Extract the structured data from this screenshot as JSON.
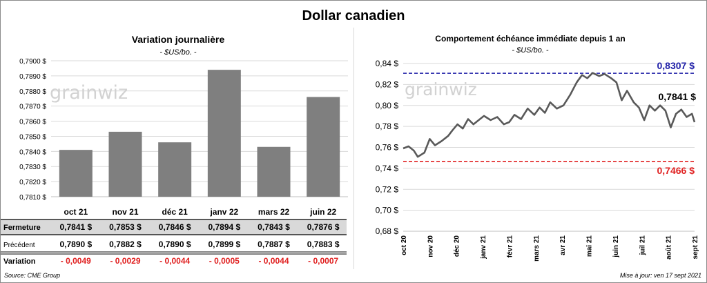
{
  "main_title": "Dollar canadien",
  "source": "Source: CME Group",
  "updated": "Mise à jour: ven 17 sept 2021",
  "chart_data": [
    {
      "type": "bar",
      "title": "Variation  journalière",
      "subtitle": "- $US/bo. -",
      "categories": [
        "oct 21",
        "nov 21",
        "déc 21",
        "janv 22",
        "mars 22",
        "juin 22"
      ],
      "values": [
        0.7841,
        0.7853,
        0.7846,
        0.7894,
        0.7843,
        0.7876
      ],
      "ylim": [
        0.781,
        0.79
      ],
      "yticks": [
        "0,7810 $",
        "0,7820 $",
        "0,7830 $",
        "0,7840 $",
        "0,7850 $",
        "0,7860 $",
        "0,7870 $",
        "0,7880 $",
        "0,7890 $",
        "0,7900 $"
      ],
      "bar_color": "#7f7f7f",
      "watermark": "grainwiz",
      "table": {
        "rows": [
          {
            "label": "Fermeture",
            "cells": [
              "0,7841  $",
              "0,7853  $",
              "0,7846  $",
              "0,7894  $",
              "0,7843  $",
              "0,7876  $"
            ]
          },
          {
            "label": "Précédent",
            "cells": [
              "0,7890  $",
              "0,7882  $",
              "0,7890  $",
              "0,7899  $",
              "0,7887  $",
              "0,7883  $"
            ]
          },
          {
            "label": "Variation",
            "cells": [
              "- 0,0049",
              "- 0,0029",
              "- 0,0044",
              "- 0,0005",
              "- 0,0044",
              "- 0,0007"
            ]
          }
        ]
      }
    },
    {
      "type": "line",
      "title": "Comportement échéance immédiate depuis 1 an",
      "subtitle": "- $US/bo. -",
      "ylim": [
        0.68,
        0.84
      ],
      "yticks": [
        "0,68 $",
        "0,70 $",
        "0,72 $",
        "0,74 $",
        "0,76 $",
        "0,78 $",
        "0,80 $",
        "0,82 $",
        "0,84 $"
      ],
      "xticks": [
        "oct 20",
        "nov 20",
        "déc 20",
        "janv 21",
        "févr 21",
        "mars 21",
        "avr 21",
        "mai 21",
        "juin 21",
        "juil 21",
        "août 21",
        "sept 21"
      ],
      "line_color": "#595959",
      "watermark": "grainwiz",
      "high": {
        "value": 0.8307,
        "label": "0,8307 $",
        "color": "#1f1fa8"
      },
      "low": {
        "value": 0.7466,
        "label": "0,7466  $",
        "color": "#e02020"
      },
      "last": {
        "value": 0.7841,
        "label": "0,7841 $"
      },
      "series": [
        {
          "x": 0,
          "y": 0.759
        },
        {
          "x": 0.2,
          "y": 0.761
        },
        {
          "x": 0.4,
          "y": 0.757
        },
        {
          "x": 0.55,
          "y": 0.751
        },
        {
          "x": 0.8,
          "y": 0.755
        },
        {
          "x": 1.0,
          "y": 0.768
        },
        {
          "x": 1.2,
          "y": 0.762
        },
        {
          "x": 1.45,
          "y": 0.766
        },
        {
          "x": 1.7,
          "y": 0.771
        },
        {
          "x": 1.85,
          "y": 0.776
        },
        {
          "x": 2.05,
          "y": 0.782
        },
        {
          "x": 2.25,
          "y": 0.778
        },
        {
          "x": 2.45,
          "y": 0.787
        },
        {
          "x": 2.65,
          "y": 0.782
        },
        {
          "x": 2.85,
          "y": 0.786
        },
        {
          "x": 3.05,
          "y": 0.79
        },
        {
          "x": 3.3,
          "y": 0.786
        },
        {
          "x": 3.55,
          "y": 0.789
        },
        {
          "x": 3.8,
          "y": 0.782
        },
        {
          "x": 4.0,
          "y": 0.784
        },
        {
          "x": 4.2,
          "y": 0.791
        },
        {
          "x": 4.45,
          "y": 0.787
        },
        {
          "x": 4.7,
          "y": 0.797
        },
        {
          "x": 4.95,
          "y": 0.791
        },
        {
          "x": 5.15,
          "y": 0.798
        },
        {
          "x": 5.35,
          "y": 0.793
        },
        {
          "x": 5.55,
          "y": 0.803
        },
        {
          "x": 5.8,
          "y": 0.797
        },
        {
          "x": 6.05,
          "y": 0.8
        },
        {
          "x": 6.3,
          "y": 0.81
        },
        {
          "x": 6.55,
          "y": 0.822
        },
        {
          "x": 6.75,
          "y": 0.829
        },
        {
          "x": 6.95,
          "y": 0.826
        },
        {
          "x": 7.15,
          "y": 0.831
        },
        {
          "x": 7.4,
          "y": 0.828
        },
        {
          "x": 7.6,
          "y": 0.83
        },
        {
          "x": 7.85,
          "y": 0.826
        },
        {
          "x": 8.05,
          "y": 0.822
        },
        {
          "x": 8.25,
          "y": 0.805
        },
        {
          "x": 8.45,
          "y": 0.814
        },
        {
          "x": 8.7,
          "y": 0.803
        },
        {
          "x": 8.9,
          "y": 0.798
        },
        {
          "x": 9.1,
          "y": 0.786
        },
        {
          "x": 9.3,
          "y": 0.8
        },
        {
          "x": 9.5,
          "y": 0.795
        },
        {
          "x": 9.7,
          "y": 0.8
        },
        {
          "x": 9.9,
          "y": 0.795
        },
        {
          "x": 10.1,
          "y": 0.779
        },
        {
          "x": 10.3,
          "y": 0.792
        },
        {
          "x": 10.5,
          "y": 0.796
        },
        {
          "x": 10.7,
          "y": 0.789
        },
        {
          "x": 10.9,
          "y": 0.792
        },
        {
          "x": 11.0,
          "y": 0.784
        }
      ]
    }
  ]
}
